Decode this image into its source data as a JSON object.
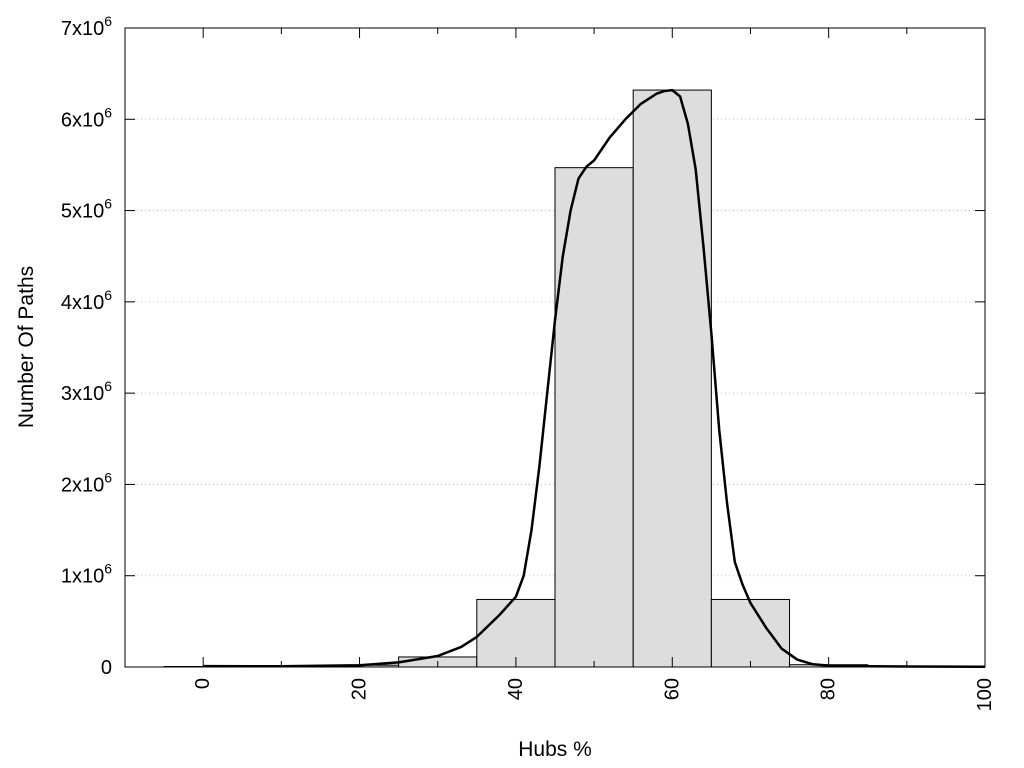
{
  "chart_data": {
    "type": "bar",
    "title": "",
    "xlabel": "Hubs %",
    "ylabel": "Number Of Paths",
    "xlim": [
      -10,
      100
    ],
    "ylim": [
      0,
      7000000
    ],
    "grid": {
      "horizontal": true,
      "style": "dotted"
    },
    "x_ticks": [
      {
        "value": 0,
        "label": "0"
      },
      {
        "value": 20,
        "label": "20"
      },
      {
        "value": 40,
        "label": "40"
      },
      {
        "value": 60,
        "label": "60"
      },
      {
        "value": 80,
        "label": "80"
      },
      {
        "value": 100,
        "label": "100"
      }
    ],
    "y_ticks": [
      {
        "value": 0,
        "mantissa": "0",
        "exponent": ""
      },
      {
        "value": 1000000,
        "mantissa": "1x10",
        "exponent": "6"
      },
      {
        "value": 2000000,
        "mantissa": "2x10",
        "exponent": "6"
      },
      {
        "value": 3000000,
        "mantissa": "3x10",
        "exponent": "6"
      },
      {
        "value": 4000000,
        "mantissa": "4x10",
        "exponent": "6"
      },
      {
        "value": 5000000,
        "mantissa": "5x10",
        "exponent": "6"
      },
      {
        "value": 6000000,
        "mantissa": "6x10",
        "exponent": "6"
      },
      {
        "value": 7000000,
        "mantissa": "7x10",
        "exponent": "6"
      }
    ],
    "bins": [
      {
        "x0": -5,
        "x1": 5,
        "value": 5000
      },
      {
        "x0": 5,
        "x1": 15,
        "value": 8000
      },
      {
        "x0": 15,
        "x1": 25,
        "value": 20000
      },
      {
        "x0": 25,
        "x1": 35,
        "value": 110000
      },
      {
        "x0": 35,
        "x1": 45,
        "value": 740000
      },
      {
        "x0": 45,
        "x1": 55,
        "value": 5470000
      },
      {
        "x0": 55,
        "x1": 65,
        "value": 6320000
      },
      {
        "x0": 65,
        "x1": 75,
        "value": 740000
      },
      {
        "x0": 75,
        "x1": 85,
        "value": 25000
      },
      {
        "x0": 85,
        "x1": 95,
        "value": 5000
      },
      {
        "x0": 95,
        "x1": 100,
        "value": 3000
      }
    ],
    "curve": {
      "x": [
        0,
        10,
        20,
        25,
        30,
        33,
        35,
        38,
        40,
        41,
        42,
        43,
        44,
        45,
        46,
        47,
        48,
        49,
        50,
        52,
        54,
        56,
        58,
        59,
        60,
        61,
        62,
        63,
        64,
        65,
        66,
        67,
        68,
        69,
        70,
        72,
        74,
        76,
        78,
        80,
        85,
        90,
        100
      ],
      "y": [
        10000,
        8000,
        20000,
        50000,
        120000,
        220000,
        330000,
        580000,
        770000,
        1000000,
        1500000,
        2200000,
        3000000,
        3800000,
        4500000,
        5000000,
        5350000,
        5480000,
        5550000,
        5800000,
        6000000,
        6170000,
        6280000,
        6310000,
        6320000,
        6250000,
        5950000,
        5450000,
        4600000,
        3650000,
        2600000,
        1800000,
        1150000,
        900000,
        700000,
        430000,
        200000,
        80000,
        30000,
        15000,
        8000,
        5000,
        3000
      ]
    },
    "colors": {
      "bar_fill": "#dddddd",
      "bar_stroke": "#000000",
      "curve": "#000000",
      "grid": "#b4b4b4"
    }
  }
}
